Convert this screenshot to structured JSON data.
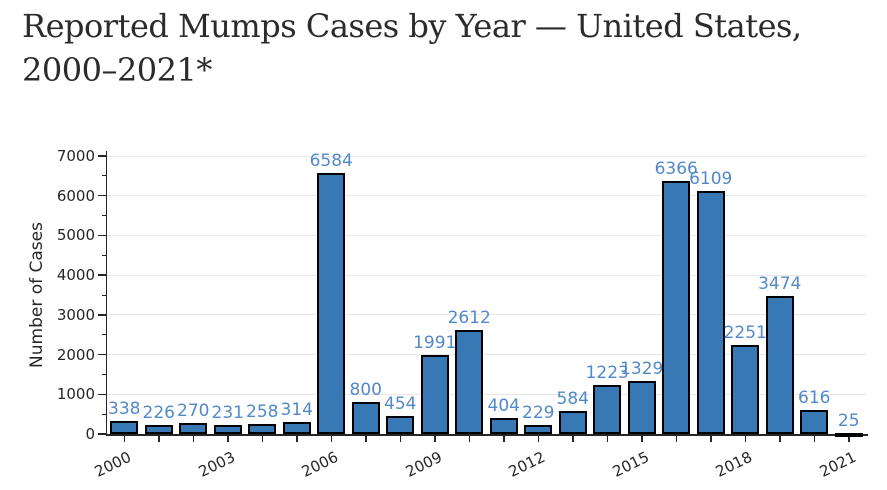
{
  "page": {
    "title_line1": "Reported Mumps Cases by Year — United States,",
    "title_line2": "2000–2021*"
  },
  "chart_data": {
    "type": "bar",
    "title": "Reported Mumps Cases by Year — United States, 2000–2021*",
    "xlabel": "",
    "ylabel": "Number of Cases",
    "categories": [
      2000,
      2001,
      2002,
      2003,
      2004,
      2005,
      2006,
      2007,
      2008,
      2009,
      2010,
      2011,
      2012,
      2013,
      2014,
      2015,
      2016,
      2017,
      2018,
      2019,
      2020,
      2021
    ],
    "values": [
      338,
      226,
      270,
      231,
      258,
      314,
      6584,
      800,
      454,
      1991,
      2612,
      404,
      229,
      584,
      1223,
      1329,
      6366,
      6109,
      2251,
      3474,
      616,
      25
    ],
    "ylim": [
      0,
      7000
    ],
    "y_tick_step": 1000,
    "y_minor_tick_step": 500,
    "x_tick_labels": [
      "2000",
      "2003",
      "2006",
      "2009",
      "2012",
      "2015",
      "2018",
      "2021"
    ],
    "grid": "horizontal",
    "legend": "none",
    "bar_value_labels": true,
    "colors": {
      "bar_fill": "#3878b4",
      "bar_border": "#000000",
      "value_label": "#5289ca",
      "grid_line": "#e8e8e8",
      "axis": "#262626",
      "tick_label": "#262626",
      "title": "#2b2b2b",
      "background": "#ffffff"
    }
  }
}
